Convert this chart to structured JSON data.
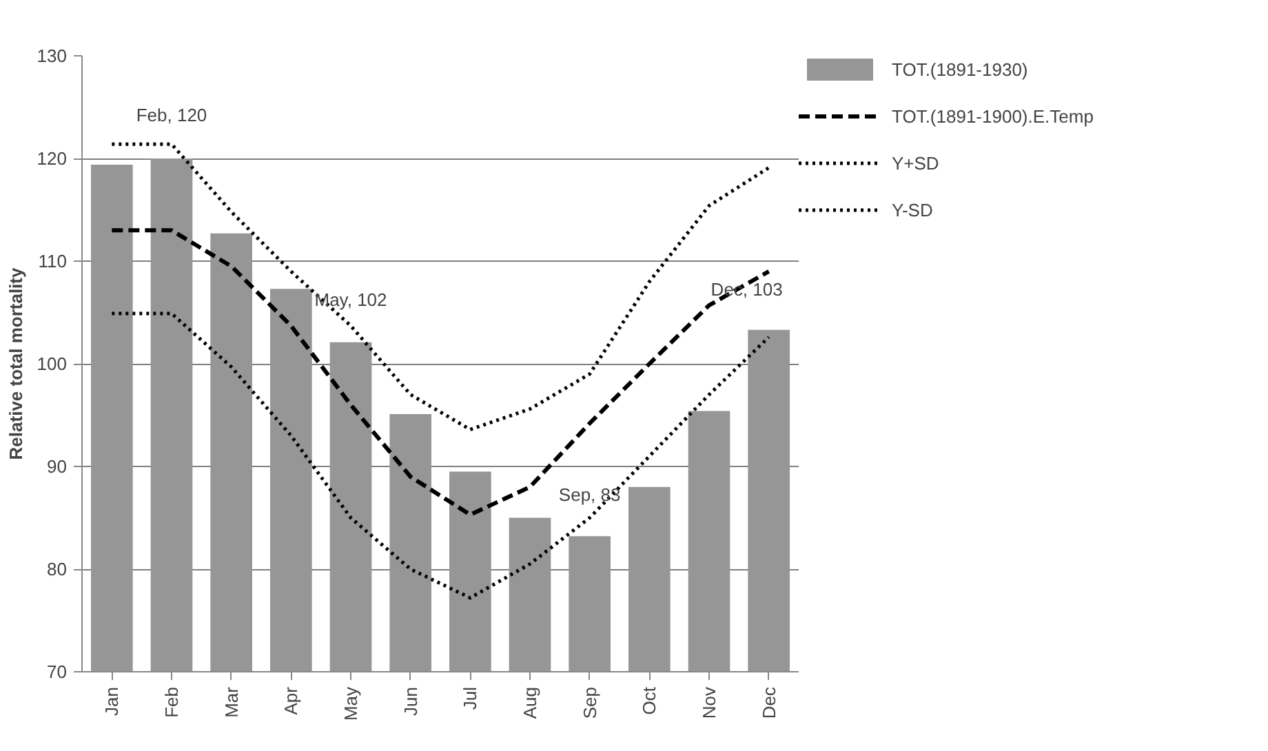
{
  "chart_data": {
    "type": "bar",
    "ylabel": "Relative total mortality",
    "categories": [
      "Jan",
      "Feb",
      "Mar",
      "Apr",
      "May",
      "Jun",
      "Jul",
      "Aug",
      "Sep",
      "Oct",
      "Nov",
      "Dec"
    ],
    "series": [
      {
        "name": "TOT.(1891-1930)",
        "color": "#969696",
        "values": [
          119.4,
          120,
          112.7,
          107.3,
          102.1,
          95.1,
          89.5,
          85,
          83.2,
          88,
          95.4,
          103.3
        ]
      },
      {
        "name": "TOT.(1891-1900).E.Temp",
        "type": "line",
        "line_style": "dashed",
        "color": "#000000",
        "values": [
          113,
          113,
          109.5,
          103.7,
          96,
          89,
          85.3,
          88,
          94.2,
          100,
          105.7,
          109
        ]
      },
      {
        "name": "Y+SD",
        "type": "line",
        "line_style": "dotted",
        "color": "#000000",
        "values": [
          121.4,
          121.4,
          114.8,
          109,
          103.7,
          97,
          93.6,
          95.6,
          99,
          108,
          115.4,
          119.1
        ]
      },
      {
        "name": "Y-SD",
        "type": "line",
        "line_style": "dotted",
        "color": "#000000",
        "values": [
          104.9,
          104.9,
          99.7,
          93,
          85,
          80,
          77.2,
          80.5,
          85,
          91,
          97,
          102.6
        ]
      }
    ],
    "annotations": [
      {
        "text": "Feb, 120",
        "x": "Feb",
        "y": 120
      },
      {
        "text": "May, 102",
        "x": "May",
        "y": 102
      },
      {
        "text": "Sep, 83",
        "x": "Sep",
        "y": 83
      },
      {
        "text": "Dec, 103",
        "x": "Dec",
        "y": 103
      }
    ],
    "ylim": [
      70,
      130
    ],
    "yticks": [
      70,
      80,
      90,
      100,
      110,
      120,
      130
    ],
    "grid": "y",
    "legend": "right"
  }
}
